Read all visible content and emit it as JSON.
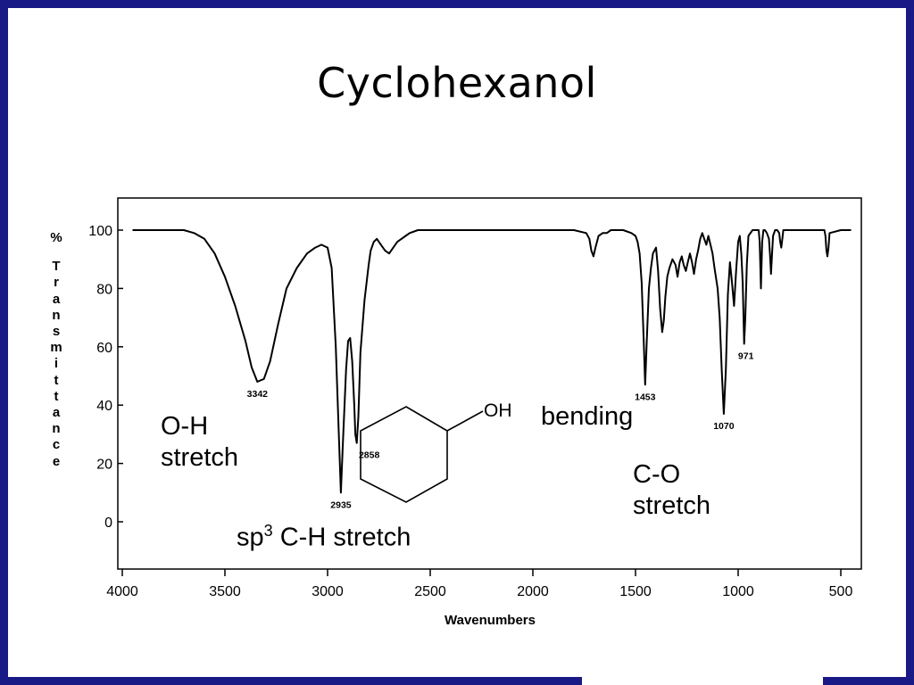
{
  "slide": {
    "title": "Cyclohexanol",
    "colors": {
      "frame": "#1a1a86",
      "spectrum": "#000000",
      "background": "#ffffff"
    }
  },
  "chart_data": {
    "type": "line",
    "title": "",
    "xlabel": "Wavenumbers",
    "ylabel": "% Transmittance",
    "ylabel_symbol": "%",
    "ylabel_word": "Transmittance",
    "xlim": [
      4000,
      450
    ],
    "ylim": [
      -17,
      105
    ],
    "x_reversed": true,
    "grid": false,
    "x_ticks": [
      4000,
      3500,
      3000,
      2500,
      2000,
      1500,
      1000,
      500
    ],
    "y_ticks": [
      100,
      80,
      60,
      40,
      20,
      0
    ],
    "series": [
      {
        "x": [
          3950,
          3800,
          3700,
          3650,
          3600,
          3550,
          3500,
          3450,
          3400,
          3370,
          3342,
          3310,
          3280,
          3240,
          3200,
          3150,
          3100,
          3060,
          3030,
          3000,
          2980,
          2960,
          2945,
          2935,
          2925,
          2910,
          2900,
          2890,
          2880,
          2870,
          2865,
          2858,
          2850,
          2840,
          2820,
          2800,
          2790,
          2775,
          2760,
          2740,
          2720,
          2700,
          2680,
          2660,
          2640,
          2620,
          2600,
          2560,
          2520,
          2400,
          2200,
          2000,
          1800,
          1740,
          1725,
          1715,
          1705,
          1695,
          1680,
          1660,
          1640,
          1620,
          1600,
          1560,
          1520,
          1500,
          1490,
          1480,
          1470,
          1460,
          1453,
          1445,
          1435,
          1425,
          1415,
          1400,
          1390,
          1380,
          1370,
          1362,
          1355,
          1345,
          1335,
          1320,
          1305,
          1295,
          1285,
          1275,
          1265,
          1255,
          1245,
          1235,
          1225,
          1215,
          1205,
          1195,
          1185,
          1175,
          1165,
          1155,
          1145,
          1135,
          1125,
          1115,
          1100,
          1090,
          1080,
          1070,
          1060,
          1050,
          1040,
          1030,
          1020,
          1010,
          1000,
          992,
          985,
          978,
          971,
          965,
          958,
          950,
          930,
          910,
          900,
          895,
          889,
          883,
          877,
          870,
          860,
          850,
          845,
          840,
          835,
          830,
          820,
          810,
          800,
          795,
          790,
          785,
          780,
          760,
          700,
          640,
          580,
          575,
          570,
          565,
          560,
          555,
          500,
          450
        ],
        "y": [
          100,
          100,
          100,
          99,
          97,
          92,
          84,
          74,
          62,
          53,
          48,
          49,
          55,
          68,
          80,
          87,
          92,
          94,
          95,
          94,
          87,
          60,
          30,
          10,
          28,
          52,
          62,
          63,
          55,
          40,
          30,
          27,
          36,
          58,
          76,
          88,
          93,
          96,
          97,
          95,
          93,
          92,
          94,
          96,
          97,
          98,
          99,
          100,
          100,
          100,
          100,
          100,
          100,
          99,
          97,
          93,
          91,
          94,
          98,
          99,
          99,
          100,
          100,
          100,
          99,
          98,
          96,
          92,
          82,
          62,
          47,
          62,
          80,
          87,
          92,
          94,
          86,
          73,
          65,
          69,
          77,
          84,
          87,
          90,
          88,
          84,
          89,
          91,
          88,
          86,
          89,
          92,
          89,
          85,
          90,
          93,
          97,
          99,
          97,
          95,
          98,
          95,
          92,
          87,
          80,
          70,
          52,
          37,
          52,
          78,
          89,
          82,
          74,
          86,
          96,
          98,
          92,
          82,
          61,
          70,
          88,
          98,
          100,
          100,
          100,
          96,
          80,
          96,
          100,
          100,
          99,
          97,
          92,
          85,
          92,
          98,
          100,
          100,
          99,
          96,
          94,
          97,
          100,
          100,
          100,
          100,
          100,
          98,
          93,
          91,
          94,
          99,
          100,
          100
        ]
      }
    ],
    "peak_labels": [
      {
        "x": 3342,
        "text": "3342"
      },
      {
        "x": 2935,
        "text": "2935"
      },
      {
        "x": 2858,
        "text": "2858"
      },
      {
        "x": 1453,
        "text": "1453"
      },
      {
        "x": 1070,
        "text": "1070"
      },
      {
        "x": 971,
        "text": "971"
      }
    ]
  },
  "annotations": {
    "oh_stretch": [
      "O-H",
      "stretch"
    ],
    "ch_stretch_prefix": "sp",
    "ch_stretch_sup": "3",
    "ch_stretch_suffix": " C-H stretch",
    "bending": "bending",
    "co_stretch": [
      "C-O",
      "stretch"
    ]
  },
  "molecule": {
    "substituent": "OH"
  }
}
